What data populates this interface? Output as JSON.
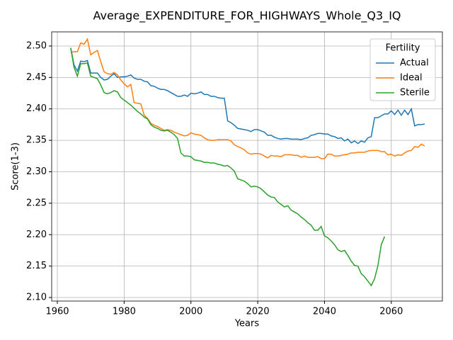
{
  "chart_data": {
    "type": "line",
    "title": "Average_EXPENDITURE_FOR_HIGHWAYS_Whole_Q3_IQ",
    "x_label": "Years",
    "y_label": "Score(1-3)",
    "legend_title": "Fertility",
    "legend_position": "upper right",
    "grid": true,
    "x": [
      1964,
      1965,
      1966,
      1967,
      1968,
      1969,
      1970,
      1971,
      1972,
      1973,
      1974,
      1975,
      1976,
      1977,
      1978,
      1979,
      1980,
      1981,
      1982,
      1983,
      1984,
      1985,
      1986,
      1987,
      1988,
      1989,
      1990,
      1991,
      1992,
      1993,
      1994,
      1995,
      1996,
      1997,
      1998,
      1999,
      2000,
      2001,
      2002,
      2003,
      2004,
      2005,
      2006,
      2007,
      2008,
      2009,
      2010,
      2011,
      2012,
      2013,
      2014,
      2015,
      2016,
      2017,
      2018,
      2019,
      2020,
      2021,
      2022,
      2023,
      2024,
      2025,
      2026,
      2027,
      2028,
      2029,
      2030,
      2031,
      2032,
      2033,
      2034,
      2035,
      2036,
      2037,
      2038,
      2039,
      2040,
      2041,
      2042,
      2043,
      2044,
      2045,
      2046,
      2047,
      2048,
      2049,
      2050,
      2051,
      2052,
      2053,
      2054,
      2055,
      2056,
      2057,
      2058,
      2059,
      2060,
      2061,
      2062,
      2063,
      2064,
      2065,
      2066,
      2067,
      2068,
      2069,
      2070
    ],
    "series": [
      {
        "name": "Actual",
        "color": "#1f77b4",
        "values": [
          2.497,
          2.47,
          2.46,
          2.476,
          2.475,
          2.477,
          2.457,
          2.457,
          2.457,
          2.45,
          2.446,
          2.447,
          2.452,
          2.456,
          2.45,
          2.451,
          2.451,
          2.452,
          2.454,
          2.449,
          2.447,
          2.447,
          2.444,
          2.443,
          2.437,
          2.436,
          2.433,
          2.431,
          2.431,
          2.429,
          2.426,
          2.423,
          2.42,
          2.42,
          2.422,
          2.42,
          2.425,
          2.424,
          2.425,
          2.427,
          2.423,
          2.423,
          2.42,
          2.42,
          2.418,
          2.417,
          2.417,
          2.381,
          2.378,
          2.374,
          2.369,
          2.368,
          2.367,
          2.366,
          2.364,
          2.367,
          2.367,
          2.365,
          2.363,
          2.358,
          2.358,
          2.355,
          2.353,
          2.352,
          2.353,
          2.353,
          2.352,
          2.352,
          2.352,
          2.351,
          2.353,
          2.354,
          2.358,
          2.359,
          2.361,
          2.361,
          2.36,
          2.36,
          2.357,
          2.356,
          2.353,
          2.354,
          2.349,
          2.352,
          2.346,
          2.349,
          2.345,
          2.349,
          2.347,
          2.354,
          2.356,
          2.386,
          2.386,
          2.389,
          2.392,
          2.392,
          2.397,
          2.391,
          2.398,
          2.39,
          2.398,
          2.391,
          2.4,
          2.373,
          2.375,
          2.375,
          2.376
        ]
      },
      {
        "name": "Ideal",
        "color": "#ff7f0e",
        "values": [
          2.49,
          2.491,
          2.491,
          2.505,
          2.503,
          2.511,
          2.486,
          2.49,
          2.493,
          2.475,
          2.459,
          2.456,
          2.455,
          2.458,
          2.454,
          2.446,
          2.44,
          2.435,
          2.439,
          2.41,
          2.409,
          2.408,
          2.39,
          2.385,
          2.377,
          2.374,
          2.372,
          2.369,
          2.366,
          2.367,
          2.366,
          2.363,
          2.361,
          2.359,
          2.357,
          2.358,
          2.362,
          2.36,
          2.359,
          2.358,
          2.354,
          2.351,
          2.35,
          2.35,
          2.351,
          2.351,
          2.351,
          2.351,
          2.349,
          2.343,
          2.34,
          2.338,
          2.335,
          2.33,
          2.328,
          2.329,
          2.329,
          2.328,
          2.325,
          2.322,
          2.326,
          2.325,
          2.325,
          2.324,
          2.327,
          2.327,
          2.327,
          2.326,
          2.326,
          2.323,
          2.325,
          2.323,
          2.323,
          2.323,
          2.324,
          2.321,
          2.321,
          2.328,
          2.328,
          2.325,
          2.325,
          2.326,
          2.327,
          2.328,
          2.33,
          2.33,
          2.331,
          2.331,
          2.331,
          2.333,
          2.334,
          2.334,
          2.334,
          2.332,
          2.332,
          2.327,
          2.328,
          2.325,
          2.327,
          2.326,
          2.33,
          2.333,
          2.334,
          2.34,
          2.339,
          2.344,
          2.341
        ]
      },
      {
        "name": "Sterile",
        "color": "#2ca02c",
        "values": [
          2.497,
          2.466,
          2.452,
          2.472,
          2.472,
          2.473,
          2.452,
          2.45,
          2.448,
          2.438,
          2.426,
          2.424,
          2.426,
          2.429,
          2.427,
          2.418,
          2.414,
          2.41,
          2.406,
          2.401,
          2.396,
          2.392,
          2.387,
          2.384,
          2.375,
          2.371,
          2.369,
          2.366,
          2.365,
          2.366,
          2.363,
          2.359,
          2.353,
          2.33,
          2.325,
          2.325,
          2.324,
          2.319,
          2.318,
          2.317,
          2.315,
          2.315,
          2.314,
          2.314,
          2.312,
          2.311,
          2.309,
          2.31,
          2.306,
          2.301,
          2.289,
          2.287,
          2.285,
          2.281,
          2.276,
          2.277,
          2.276,
          2.273,
          2.268,
          2.263,
          2.26,
          2.259,
          2.252,
          2.248,
          2.244,
          2.246,
          2.239,
          2.236,
          2.233,
          2.228,
          2.224,
          2.219,
          2.215,
          2.207,
          2.207,
          2.213,
          2.198,
          2.195,
          2.19,
          2.184,
          2.176,
          2.173,
          2.175,
          2.167,
          2.158,
          2.151,
          2.15,
          2.138,
          2.133,
          2.126,
          2.119,
          2.13,
          2.151,
          2.184,
          2.197,
          null,
          null,
          null,
          null,
          null,
          null,
          null,
          null,
          null,
          null,
          null,
          null
        ]
      }
    ],
    "xlim": [
      1958.3,
      2075.3
    ],
    "xticks": [
      1960,
      1980,
      2000,
      2020,
      2040,
      2060
    ],
    "ylim": [
      2.0944,
      2.5225
    ],
    "yticks": [
      {
        "value": 2.1,
        "label": "2.10"
      },
      {
        "value": 2.15,
        "label": "2.15"
      },
      {
        "value": 2.2,
        "label": "2.20"
      },
      {
        "value": 2.25,
        "label": "2.25"
      },
      {
        "value": 2.3,
        "label": "2.30"
      },
      {
        "value": 2.35,
        "label": "2.35"
      },
      {
        "value": 2.4,
        "label": "2.40"
      },
      {
        "value": 2.45,
        "label": "2.45"
      },
      {
        "value": 2.5,
        "label": "2.50"
      }
    ]
  }
}
